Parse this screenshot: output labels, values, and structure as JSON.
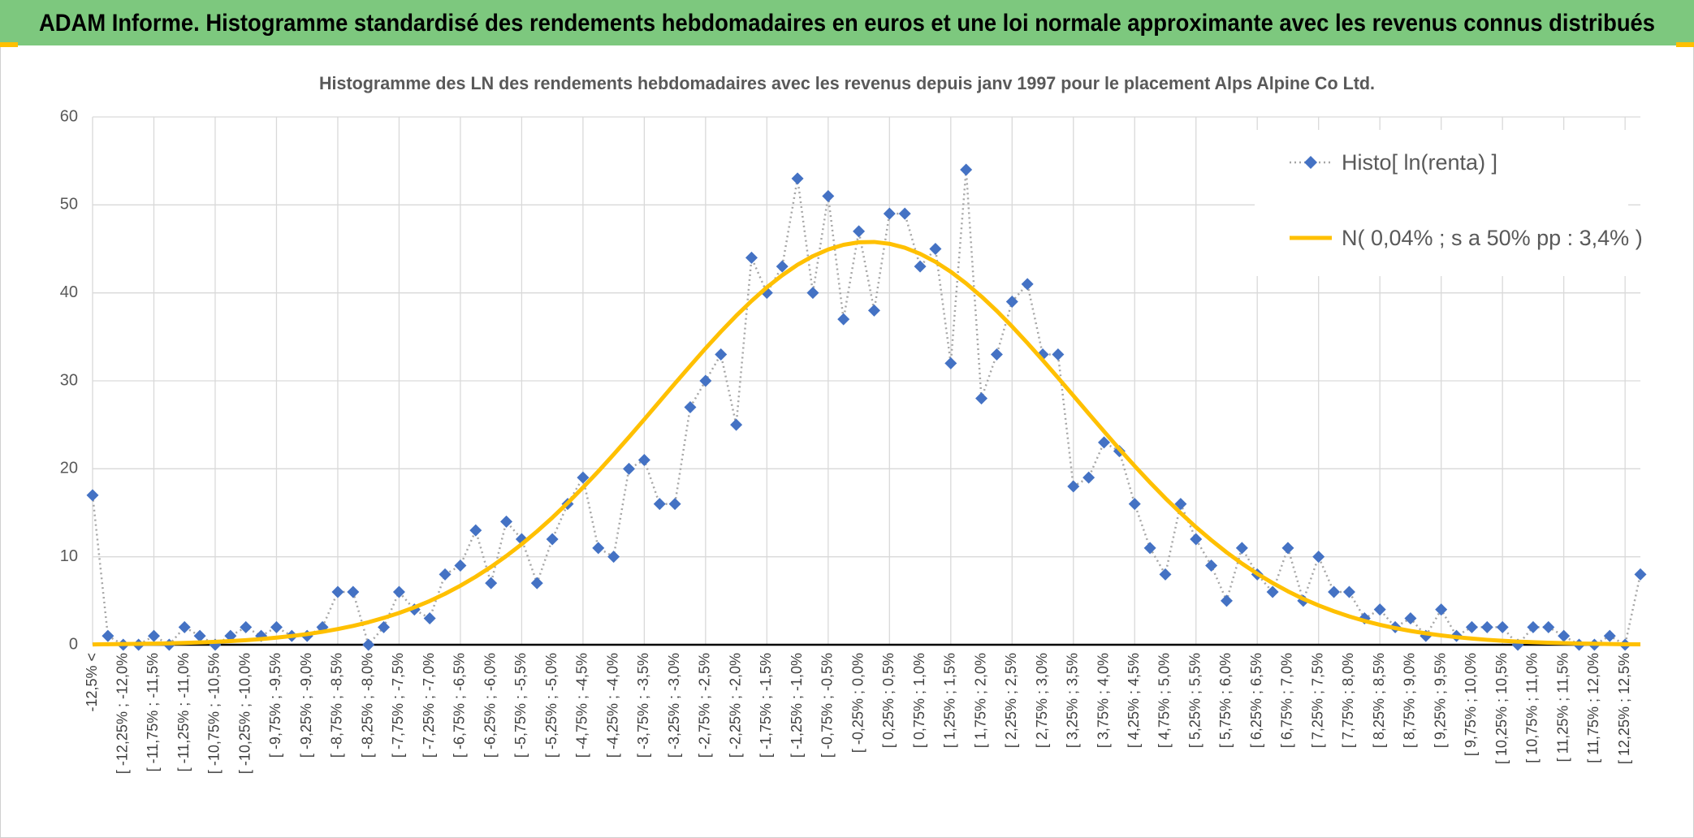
{
  "header": {
    "title": "ADAM Informe. Histogramme standardisé des rendements hebdomadaires en euros et une loi normale approximante avec les revenus connus distribués"
  },
  "chart_data": {
    "type": "line",
    "title": "Histogramme des LN des rendements hebdomadaires avec les revenus depuis janv 1997 pour le placement Alps Alpine Co Ltd.",
    "categories": [
      "-12,5% <",
      null,
      "[ -12,25% ; -12,0%",
      null,
      "[ -11,75% ; -11,5%",
      null,
      "[ -11,25% ; -11,0%",
      null,
      "[ -10,75% ; -10,5%",
      null,
      "[ -10,25% ; -10,0%",
      null,
      "[ -9,75% ; -9,5%",
      null,
      "[ -9,25% ; -9,0%",
      null,
      "[ -8,75% ; -8,5%",
      null,
      "[ -8,25% ; -8,0%",
      null,
      "[ -7,75% ; -7,5%",
      null,
      "[ -7,25% ; -7,0%",
      null,
      "[ -6,75% ; -6,5%",
      null,
      "[ -6,25% ; -6,0%",
      null,
      "[ -5,75% ; -5,5%",
      null,
      "[ -5,25% ; -5,0%",
      null,
      "[ -4,75% ; -4,5%",
      null,
      "[ -4,25% ; -4,0%",
      null,
      "[ -3,75% ; -3,5%",
      null,
      "[ -3,25% ; -3,0%",
      null,
      "[ -2,75% ; -2,5%",
      null,
      "[ -2,25% ; -2,0%",
      null,
      "[ -1,75% ; -1,5%",
      null,
      "[ -1,25% ; -1,0%",
      null,
      "[ -0,75% ; -0,5%",
      null,
      "[ -0,25% ; 0,0%",
      null,
      "[ 0,25% ; 0,5%",
      null,
      "[ 0,75% ; 1,0%",
      null,
      "[ 1,25% ; 1,5%",
      null,
      "[ 1,75% ; 2,0%",
      null,
      "[ 2,25% ; 2,5%",
      null,
      "[ 2,75% ; 3,0%",
      null,
      "[ 3,25% ; 3,5%",
      null,
      "[ 3,75% ; 4,0%",
      null,
      "[ 4,25% ; 4,5%",
      null,
      "[ 4,75% ; 5,0%",
      null,
      "[ 5,25% ; 5,5%",
      null,
      "[ 5,75% ; 6,0%",
      null,
      "[ 6,25% ; 6,5%",
      null,
      "[ 6,75% ; 7,0%",
      null,
      "[ 7,25% ; 7,5%",
      null,
      "[ 7,75% ; 8,0%",
      null,
      "[ 8,25% ; 8,5%",
      null,
      "[ 8,75% ; 9,0%",
      null,
      "[ 9,25% ; 9,5%",
      null,
      "[ 9,75% ; 10,0%",
      null,
      "[ 10,25% ; 10,5%",
      null,
      "[ 10,75% ; 11,0%",
      null,
      "[ 11,25% ; 11,5%",
      null,
      "[ 11,75% ; 12,0%",
      null,
      "[ 12,25% ; 12,5%",
      null
    ],
    "series": [
      {
        "name": "Histo[ ln(renta) ]",
        "color": "#4472c4",
        "marker": "diamond",
        "line_style": "dotted",
        "line_color": "#a6a6a6",
        "values": [
          17,
          1,
          0,
          0,
          1,
          0,
          2,
          1,
          0,
          1,
          2,
          1,
          2,
          1,
          1,
          2,
          6,
          6,
          0,
          2,
          6,
          4,
          3,
          8,
          9,
          13,
          7,
          14,
          12,
          7,
          12,
          16,
          19,
          11,
          10,
          20,
          21,
          16,
          16,
          27,
          30,
          33,
          25,
          44,
          40,
          43,
          53,
          40,
          51,
          37,
          47,
          38,
          49,
          49,
          43,
          45,
          32,
          54,
          28,
          33,
          39,
          41,
          33,
          33,
          18,
          19,
          23,
          22,
          16,
          11,
          8,
          16,
          12,
          9,
          5,
          11,
          8,
          6,
          11,
          5,
          10,
          6,
          6,
          3,
          4,
          2,
          3,
          1,
          4,
          1,
          2,
          2,
          2,
          0,
          2,
          2,
          1,
          0,
          0,
          1,
          0,
          8
        ]
      },
      {
        "name": "N( 0,04% ; s a 50% pp : 3,4% )",
        "color": "#ffc000",
        "line_style": "solid",
        "values": [
          0.04,
          0.06,
          0.08,
          0.1,
          0.13,
          0.16,
          0.21,
          0.26,
          0.33,
          0.42,
          0.52,
          0.65,
          0.81,
          0.99,
          1.21,
          1.47,
          1.78,
          2.14,
          2.56,
          3.05,
          3.61,
          4.25,
          4.97,
          5.79,
          6.71,
          7.73,
          8.85,
          10.09,
          11.43,
          12.89,
          14.45,
          16.11,
          17.87,
          19.71,
          21.63,
          23.6,
          25.62,
          27.66,
          29.7,
          31.71,
          33.69,
          35.59,
          37.4,
          39.08,
          40.63,
          42.0,
          43.19,
          44.17,
          44.93,
          45.46,
          45.75,
          45.79,
          45.58,
          45.13,
          44.44,
          43.53,
          42.4,
          41.08,
          39.59,
          37.95,
          36.18,
          34.3,
          32.35,
          30.35,
          28.31,
          26.27,
          24.25,
          22.25,
          20.32,
          18.45,
          16.66,
          14.97,
          13.37,
          11.89,
          10.5,
          9.23,
          8.07,
          7.02,
          6.07,
          5.22,
          4.47,
          3.81,
          3.22,
          2.71,
          2.27,
          1.89,
          1.57,
          1.29,
          1.06,
          0.86,
          0.7,
          0.56,
          0.45,
          0.36,
          0.29,
          0.23,
          0.18,
          0.14,
          0.11,
          0.08,
          0.06,
          0.05
        ]
      }
    ],
    "ylim": [
      0,
      60
    ],
    "yticks": [
      0,
      10,
      20,
      30,
      40,
      50,
      60
    ],
    "grid": true,
    "legend": "upper right"
  }
}
